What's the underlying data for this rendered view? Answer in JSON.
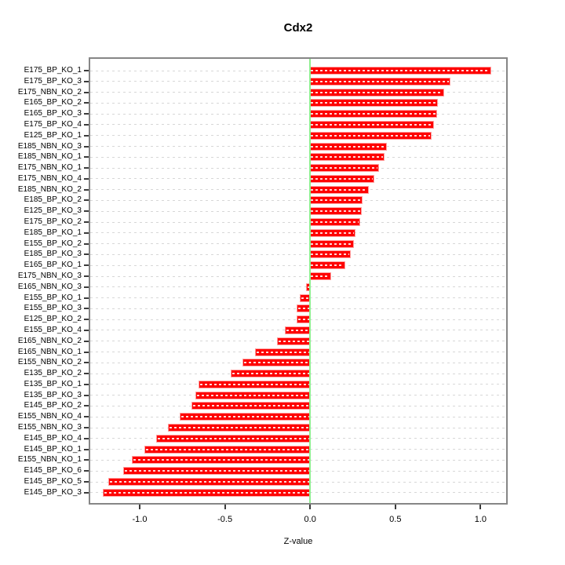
{
  "title": "Cdx2",
  "x_axis_label": "Z-value",
  "chart_data": {
    "type": "bar",
    "orientation": "horizontal",
    "title": "Cdx2",
    "xlabel": "Z-value",
    "ylabel": "",
    "grid": true,
    "legend": false,
    "xlim": [
      -1.29,
      1.15
    ],
    "x_tick_values": [
      -1.0,
      -0.5,
      0.0,
      0.5,
      1.0
    ],
    "x_tick_labels": [
      "-1.0",
      "-0.5",
      "0.0",
      "0.5",
      "1.0"
    ],
    "bar_color": "#fe0000",
    "bar_dash_color": "#ffffff",
    "zero_line_color": "#90ee90",
    "grid_color": "#d7d7d7",
    "categories": [
      "E175_BP_KO_1",
      "E175_BP_KO_3",
      "E175_NBN_KO_2",
      "E165_BP_KO_2",
      "E165_BP_KO_3",
      "E175_BP_KO_4",
      "E125_BP_KO_1",
      "E185_NBN_KO_3",
      "E185_NBN_KO_1",
      "E175_NBN_KO_1",
      "E175_NBN_KO_4",
      "E185_NBN_KO_2",
      "E185_BP_KO_2",
      "E125_BP_KO_3",
      "E175_BP_KO_2",
      "E185_BP_KO_1",
      "E155_BP_KO_2",
      "E185_BP_KO_3",
      "E165_BP_KO_1",
      "E175_NBN_KO_3",
      "E165_NBN_KO_3",
      "E155_BP_KO_1",
      "E155_BP_KO_3",
      "E125_BP_KO_2",
      "E155_BP_KO_4",
      "E165_NBN_KO_2",
      "E165_NBN_KO_1",
      "E155_NBN_KO_2",
      "E135_BP_KO_2",
      "E135_BP_KO_1",
      "E135_BP_KO_3",
      "E145_BP_KO_2",
      "E155_NBN_KO_4",
      "E155_NBN_KO_3",
      "E145_BP_KO_4",
      "E145_BP_KO_1",
      "E155_NBN_KO_1",
      "E145_BP_KO_6",
      "E145_BP_KO_5",
      "E145_BP_KO_3"
    ],
    "values": [
      1.06,
      0.82,
      0.78,
      0.745,
      0.74,
      0.72,
      0.71,
      0.445,
      0.43,
      0.4,
      0.37,
      0.34,
      0.305,
      0.3,
      0.29,
      0.26,
      0.25,
      0.235,
      0.2,
      0.12,
      -0.02,
      -0.055,
      -0.073,
      -0.075,
      -0.145,
      -0.19,
      -0.32,
      -0.39,
      -0.46,
      -0.65,
      -0.67,
      -0.69,
      -0.76,
      -0.83,
      -0.9,
      -0.97,
      -1.04,
      -1.09,
      -1.18,
      -1.21
    ]
  }
}
